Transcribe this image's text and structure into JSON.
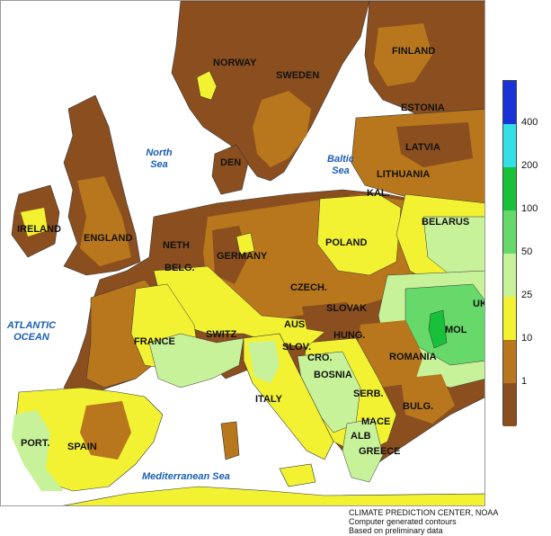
{
  "map": {
    "title": "",
    "countries": {
      "norway": "NORWAY",
      "sweden": "SWEDEN",
      "finland": "FINLAND",
      "estonia": "ESTONIA",
      "latvia": "LATVIA",
      "lithuania": "LITHUANIA",
      "kal": "KAL.",
      "belarus": "BELARUS",
      "ireland": "IRELAND",
      "england": "ENGLAND",
      "den": "DEN",
      "neth": "NETH",
      "belg": "BELG.",
      "germany": "GERMANY",
      "poland": "POLAND",
      "czech": "CZECH.",
      "slovak": "SLOVAK",
      "ukraine_partial": "UK",
      "switz": "SWITZ",
      "aus": "AUS",
      "hung": "HUNG.",
      "france": "FRANCE",
      "slov": "SLOV.",
      "cro": "CRO.",
      "romania": "ROMANIA",
      "mol": "MOL",
      "bosnia": "BOSNIA",
      "serb": "SERB.",
      "italy": "ITALY",
      "bulg": "BULG.",
      "mace": "MACE",
      "alb": "ALB",
      "greece": "GREECE",
      "port": "PORT.",
      "spain": "SPAIN"
    },
    "seas": {
      "north_sea": "North Sea",
      "baltic_sea": "Baltic Sea",
      "atlantic_ocean": "ATLANTIC OCEAN",
      "mediterranean_sea": "Mediterranean Sea"
    },
    "colors": {
      "ocean": "#ffffff",
      "lt1": "#8b4f1f",
      "r1_10": "#b8771c",
      "r10_25": "#f2f233",
      "r25_50": "#c8f29a",
      "r50_100": "#66d96a",
      "r100_200": "#19c03a",
      "r200_400": "#33e0e6",
      "gt400": "#1a33d9"
    }
  },
  "legend": {
    "swatches": [
      {
        "name": "400-plus",
        "color": "#1a33d9"
      },
      {
        "name": "200-400",
        "color": "#33e0e6"
      },
      {
        "name": "100-200",
        "color": "#19c03a"
      },
      {
        "name": "50-100",
        "color": "#66d96a"
      },
      {
        "name": "25-50",
        "color": "#c8f29a"
      },
      {
        "name": "10-25",
        "color": "#f2f233"
      },
      {
        "name": "1-10",
        "color": "#b8771c"
      },
      {
        "name": "below-1",
        "color": "#8b4f1f"
      }
    ],
    "ticks": [
      "400",
      "200",
      "100",
      "50",
      "25",
      "10",
      "1"
    ]
  },
  "credits": {
    "line1": "CLIMATE PREDICTION CENTER, NOAA",
    "line2": "Computer generated contours",
    "line3": "Based on preliminary data"
  }
}
